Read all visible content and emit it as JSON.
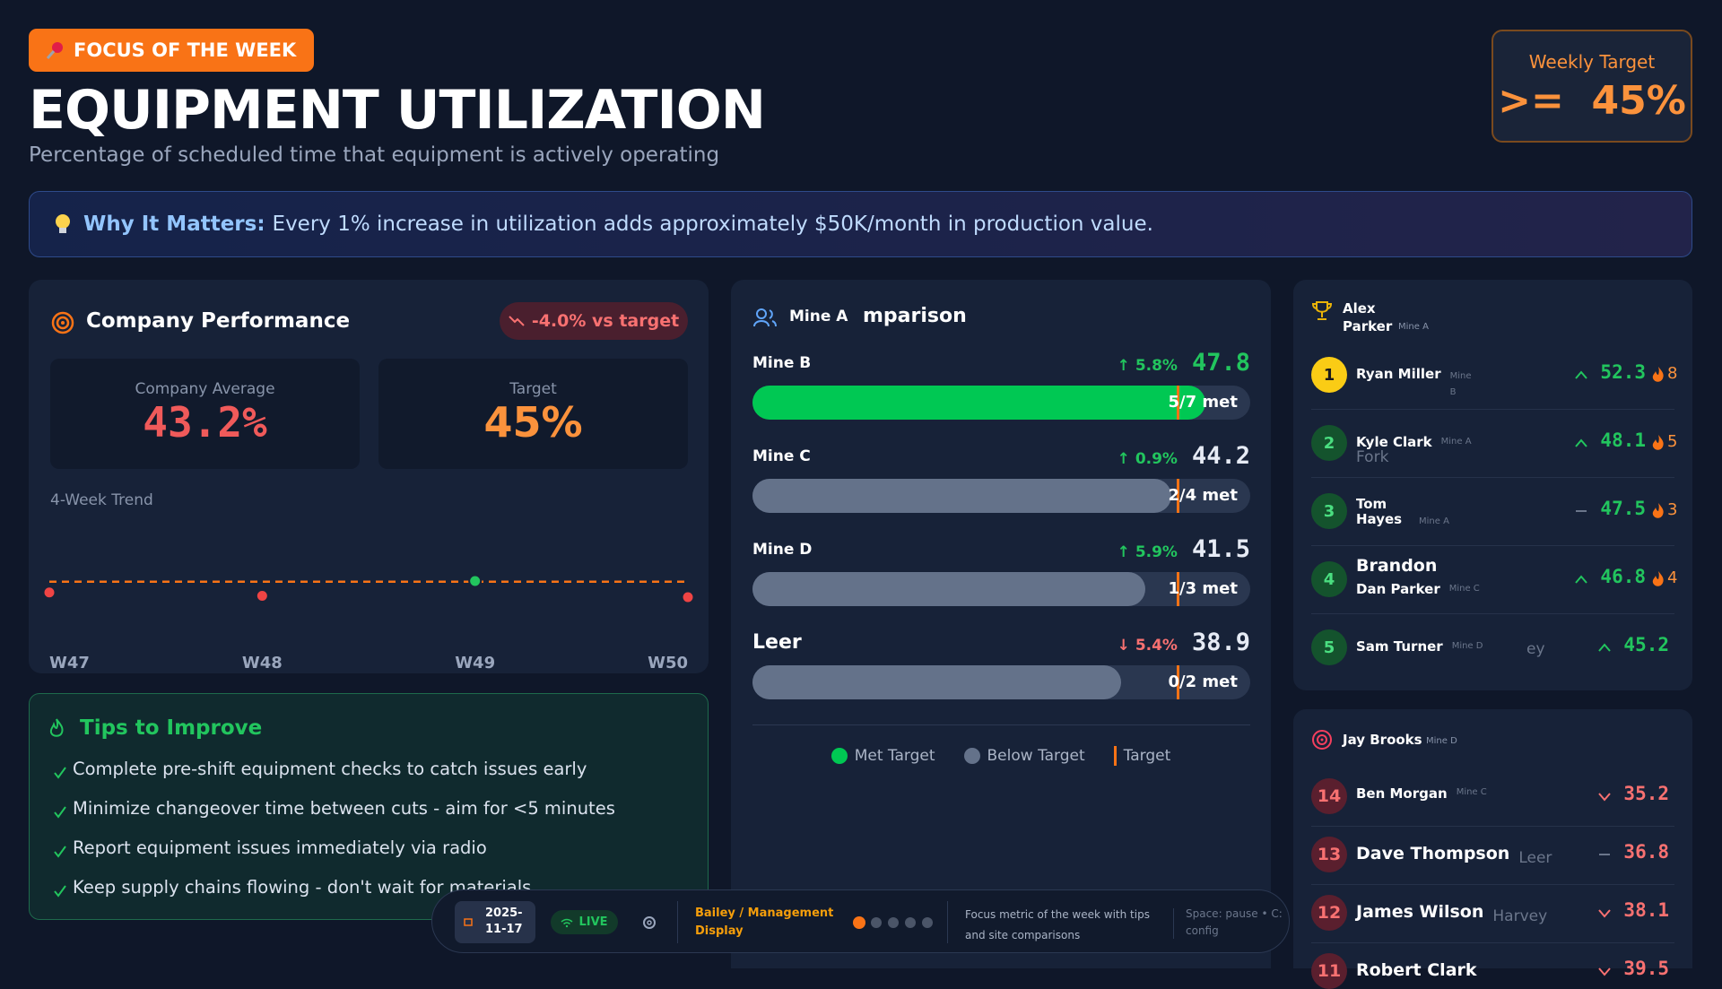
{
  "header": {
    "badge": "FOCUS OF THE WEEK",
    "title": "EQUIPMENT UTILIZATION",
    "subtitle": "Percentage of scheduled time that equipment is actively operating",
    "target_label": "Weekly Target",
    "target_value": ">=  45%"
  },
  "why": {
    "label": "Why It Matters:",
    "text": "Every 1% increase in utilization adds approximately $50K/month in production value."
  },
  "company": {
    "title": "Company Performance",
    "delta": "-4.0% vs target",
    "average_label": "Company Average",
    "average": "43.2%",
    "target_label": "Target",
    "target": "45%",
    "trend_label": "4-Week Trend",
    "trend": {
      "weeks": [
        "W47",
        "W48",
        "W49",
        "W50"
      ],
      "values": [
        43.4,
        42.9,
        45.1,
        42.7
      ],
      "target": 45
    }
  },
  "tips": {
    "title": "Tips to Improve",
    "items": [
      "Complete pre-shift equipment checks to catch issues early",
      "Minimize changeover time between cuts - aim for <5 minutes",
      "Report equipment issues immediately via radio",
      "Keep supply chains flowing - don't wait for materials"
    ]
  },
  "mines": {
    "title_prefix": "Mine A",
    "title": "mparison",
    "target": 45,
    "rows": [
      {
        "name": "Mine B",
        "change": "↑ 5.8%",
        "value": 47.8,
        "met": "5/7 met"
      },
      {
        "name": "Mine C",
        "change": "↑ 0.9%",
        "value": 44.2,
        "met": "2/4 met"
      },
      {
        "name": "Mine D",
        "change": "↑ 5.9%",
        "value": 41.5,
        "met": "1/3 met"
      },
      {
        "name": "Leer",
        "change": "↓ 5.4%",
        "value": 38.9,
        "met": "0/2 met"
      }
    ],
    "legend": [
      "Met Target",
      "Below Target",
      "Target"
    ]
  },
  "leaders": {
    "header": "Alex Parker",
    "header_site": "Mine A",
    "rows": [
      {
        "rank": "1",
        "name": "Ryan Miller",
        "site": "Mine B",
        "trend": "up",
        "value": "52.3",
        "streak": "8"
      },
      {
        "rank": "2",
        "name": "Kyle Clark",
        "site": "Mine A",
        "extra": "Fork",
        "trend": "up",
        "value": "48.1",
        "streak": "5"
      },
      {
        "rank": "3",
        "name": "Tom Hayes",
        "site": "Mine A",
        "trend": "flat",
        "value": "47.5",
        "streak": "3"
      },
      {
        "rank": "4",
        "big": "Brandon",
        "name": "Dan Parker",
        "site": "Mine C",
        "trend": "up",
        "value": "46.8",
        "streak": "4"
      },
      {
        "rank": "5",
        "name": "Sam Turner",
        "site": "Mine D",
        "extra": "ey",
        "trend": "up",
        "value": "45.2"
      }
    ]
  },
  "bottom": {
    "header": "Jay Brooks",
    "header_site": "Mine D",
    "rows": [
      {
        "rank": "14",
        "name": "Ben Morgan",
        "site": "Mine C",
        "trend": "down",
        "value": "35.2"
      },
      {
        "rank": "13",
        "name": "Dave Thompson",
        "site": "Leer",
        "trend": "flat",
        "value": "36.8"
      },
      {
        "rank": "12",
        "name": "James Wilson",
        "site": "Harvey",
        "trend": "down",
        "value": "38.1"
      },
      {
        "rank": "11",
        "name": "Robert Clark",
        "trend": "down",
        "value": "39.5"
      }
    ]
  },
  "footer": {
    "date": "2025-11-17",
    "live": "LIVE",
    "display": "Bailey / Management Display",
    "description": "Focus metric of the week with tips and site comparisons",
    "keys": "Space: pause • C: config"
  }
}
